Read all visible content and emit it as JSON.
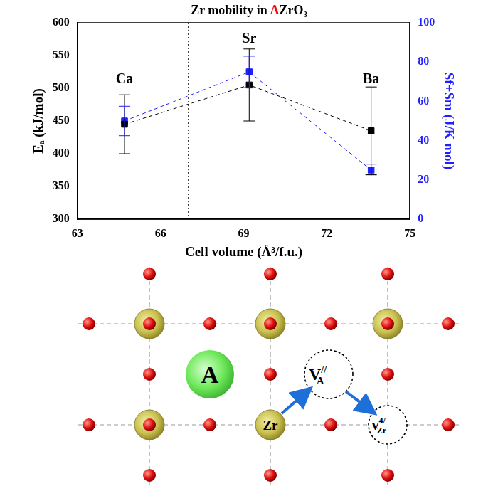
{
  "chart_data": {
    "type": "line",
    "title": "Zr mobility in AZrO₃",
    "x_label": "Cell volume (Å³/f.u.)",
    "y_label": "Eₐ (kJ/mol)",
    "y2_label": "Sf+Sm (J/K mol)",
    "x": [
      64.7,
      69.2,
      73.6
    ],
    "xlim": [
      63,
      75
    ],
    "xticks": [
      63,
      66,
      69,
      72,
      75
    ],
    "ylim": [
      300,
      600
    ],
    "yticks": [
      300,
      350,
      400,
      450,
      500,
      550,
      600
    ],
    "y2lim": [
      0,
      100
    ],
    "y2ticks": [
      0,
      20,
      40,
      60,
      80,
      100
    ],
    "grid": false,
    "series": [
      {
        "color": "#000000",
        "marker": "square",
        "line_style": "dashed",
        "values": [
          445,
          505,
          435
        ],
        "errors": [
          45,
          55,
          67
        ]
      },
      {
        "color": "#1f1fff",
        "marker": "square",
        "line_style": "dashed",
        "axis": "y2",
        "values": [
          50,
          75,
          25
        ],
        "errors": [
          7.5,
          8,
          3
        ]
      }
    ],
    "annotations": [
      {
        "text": "Ca",
        "x": 64.7,
        "y": 513
      },
      {
        "text": "Sr",
        "x": 69.2,
        "y": 575
      },
      {
        "text": "Ba",
        "x": 73.6,
        "y": 513
      }
    ],
    "reference_line": {
      "x": 67,
      "line_style": "dotted"
    }
  },
  "diagram": {
    "atoms": [
      {
        "label": "A"
      },
      {
        "label": "Zr"
      }
    ],
    "vacancies": [
      {
        "main": "V",
        "sub": "A",
        "sup": "//"
      },
      {
        "main": "v",
        "sub": "Zr",
        "sup": "4/"
      }
    ]
  }
}
